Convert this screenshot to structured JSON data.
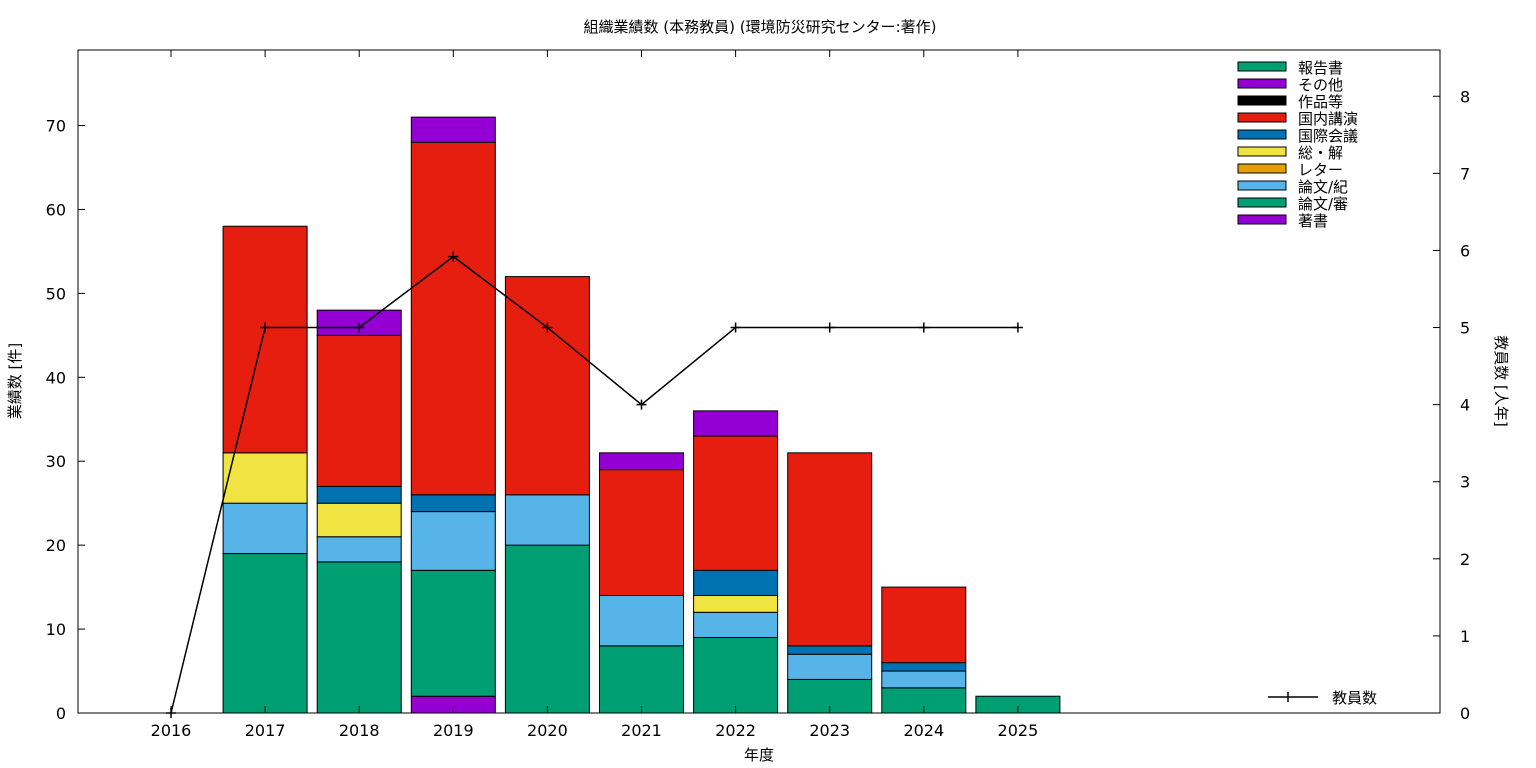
{
  "chart_data": {
    "type": "bar",
    "title": "組織業績数 (本務教員) (環境防災研究センター:著作)",
    "xlabel": "年度",
    "ylabel": "業績数 [件]",
    "y2label": "教員数 [人年]",
    "stacked": true,
    "categories": [
      "2016",
      "2017",
      "2018",
      "2019",
      "2020",
      "2021",
      "2022",
      "2023",
      "2024",
      "2025"
    ],
    "ylim": [
      0,
      79
    ],
    "y_ticks": [
      0,
      10,
      20,
      30,
      40,
      50,
      60,
      70
    ],
    "y2lim": [
      0,
      8.6
    ],
    "y2_ticks": [
      0,
      1,
      2,
      3,
      4,
      5,
      6,
      7,
      8
    ],
    "grid": false,
    "legend_position": "top-right",
    "series": [
      {
        "name": "著書",
        "color": "#9400d3",
        "values": [
          0,
          0,
          0,
          2,
          0,
          0,
          0,
          0,
          0,
          0
        ]
      },
      {
        "name": "論文/審",
        "color": "#009e73",
        "values": [
          0,
          19,
          18,
          15,
          20,
          8,
          9,
          4,
          3,
          2
        ]
      },
      {
        "name": "論文/紀",
        "color": "#56b4e9",
        "values": [
          0,
          6,
          3,
          7,
          6,
          6,
          3,
          3,
          2,
          0
        ]
      },
      {
        "name": "レター",
        "color": "#e69f00",
        "values": [
          0,
          0,
          0,
          0,
          0,
          0,
          0,
          0,
          0,
          0
        ]
      },
      {
        "name": "総・解",
        "color": "#f0e442",
        "values": [
          0,
          6,
          4,
          0,
          0,
          0,
          2,
          0,
          0,
          0
        ]
      },
      {
        "name": "国際会議",
        "color": "#0072b2",
        "values": [
          0,
          0,
          2,
          2,
          0,
          0,
          3,
          1,
          1,
          0
        ]
      },
      {
        "name": "国内講演",
        "color": "#e51e10",
        "values": [
          0,
          27,
          18,
          42,
          26,
          15,
          16,
          23,
          9,
          0
        ]
      },
      {
        "name": "作品等",
        "color": "#000000",
        "values": [
          0,
          0,
          0,
          0,
          0,
          0,
          0,
          0,
          0,
          0
        ]
      },
      {
        "name": "その他",
        "color": "#9400d3",
        "values": [
          0,
          0,
          3,
          3,
          0,
          2,
          3,
          0,
          0,
          0
        ]
      },
      {
        "name": "報告書",
        "color": "#009e73",
        "values": [
          0,
          0,
          0,
          0,
          0,
          0,
          0,
          0,
          0,
          0
        ]
      }
    ],
    "line_series": {
      "name": "教員数",
      "axis": "y2",
      "color": "#000000",
      "values": [
        0,
        5,
        5,
        5.92,
        5,
        4,
        5,
        5,
        5,
        5
      ]
    }
  }
}
